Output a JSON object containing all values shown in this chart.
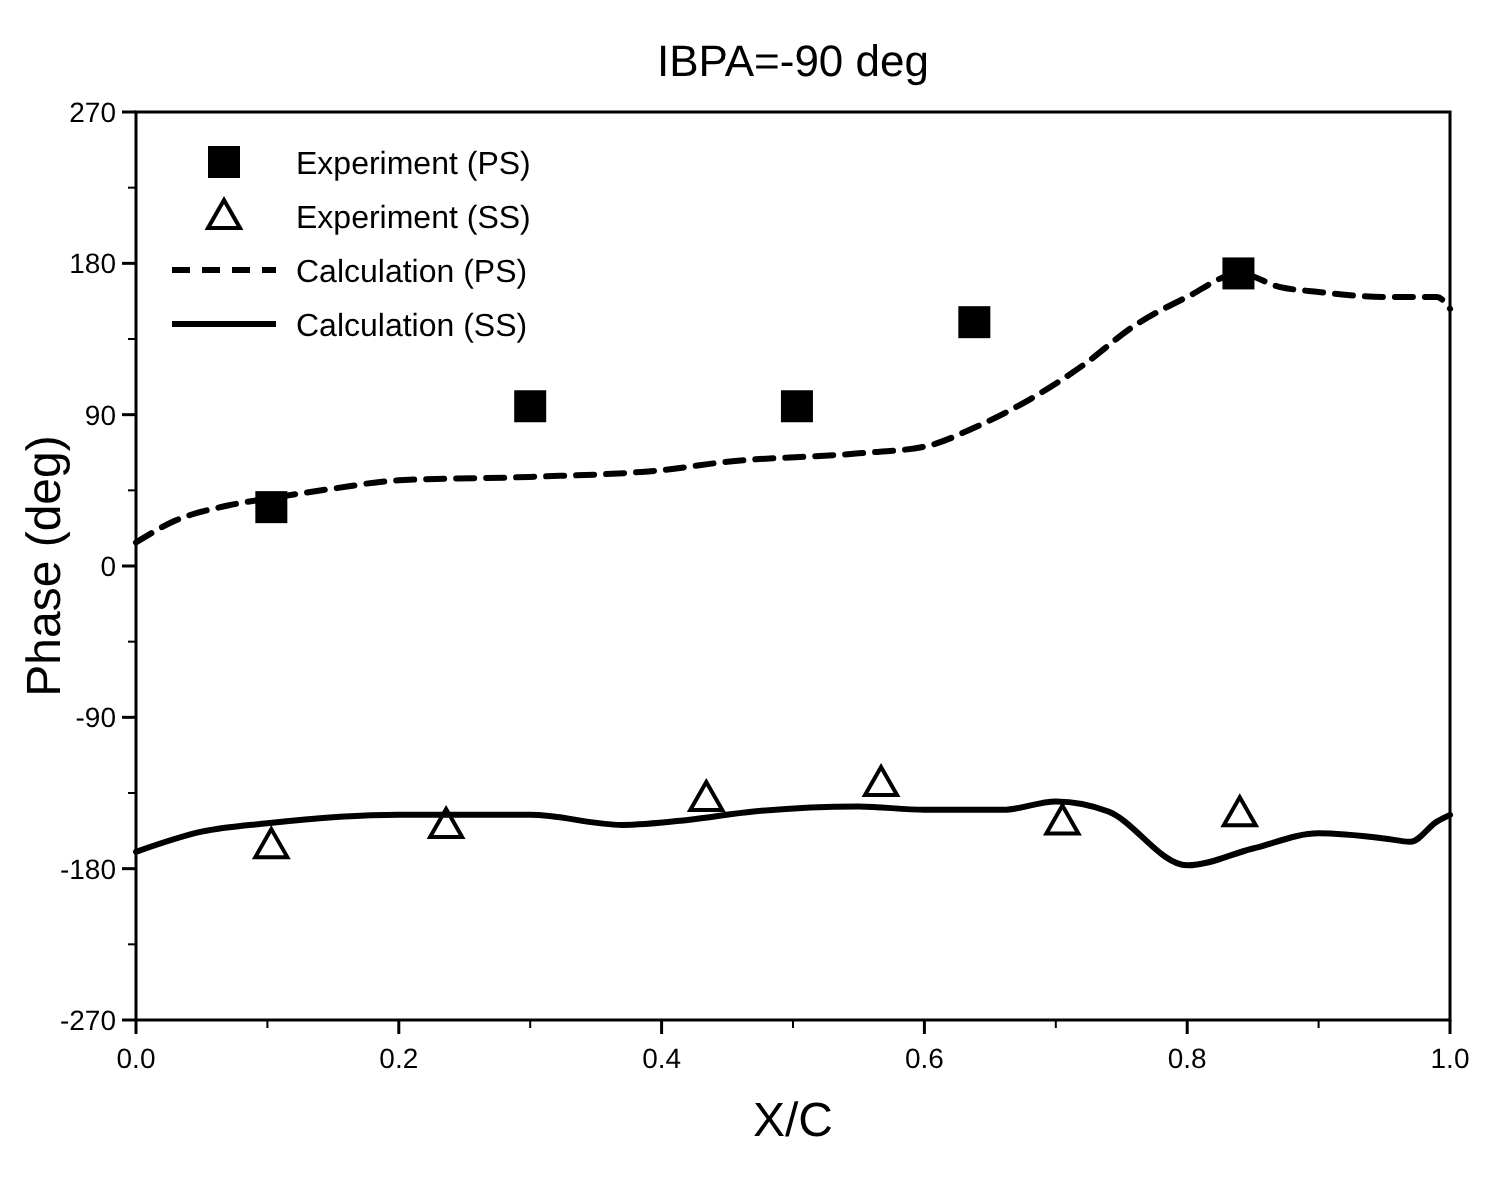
{
  "chart_data": {
    "type": "line",
    "title": "IBPA=-90 deg",
    "xlabel": "X/C",
    "ylabel": "Phase (deg)",
    "xlim": [
      0,
      1
    ],
    "xticks": [
      {
        "value": 0,
        "label": "0.0"
      },
      0.2,
      0.4,
      0.6,
      0.8,
      {
        "value": 1,
        "label": "1.0"
      }
    ],
    "ylim": [
      -270,
      270
    ],
    "yticks": [
      -270,
      -180,
      -90,
      0,
      90,
      180,
      270
    ],
    "grid": false,
    "legend": "top left",
    "series": [
      {
        "name": "Experiment (PS)",
        "type": "scatter",
        "marker": "square",
        "color": "#000000",
        "x": [
          0.103,
          0.3,
          0.503,
          0.638,
          0.839
        ],
        "values": [
          35,
          95,
          95,
          145,
          174
        ]
      },
      {
        "name": "Experiment (SS)",
        "type": "scatter",
        "marker": "triangle",
        "color": "#000000",
        "x": [
          0.103,
          0.236,
          0.434,
          0.567,
          0.705,
          0.84
        ],
        "values": [
          -166,
          -154,
          -138,
          -129,
          -152,
          -147
        ]
      },
      {
        "name": "Calculation (PS)",
        "line_style": "dashed",
        "color": "#000000",
        "x": [
          0,
          0.03,
          0.07,
          0.1,
          0.15,
          0.2,
          0.3,
          0.4,
          0.45,
          0.55,
          0.6,
          0.64,
          0.68,
          0.72,
          0.76,
          0.8,
          0.84,
          0.87,
          0.9,
          0.95,
          0.99,
          1.0
        ],
        "values": [
          14,
          27,
          36,
          40,
          46,
          51,
          53,
          57,
          62,
          67,
          71,
          83,
          99,
          119,
          143,
          160,
          174,
          166,
          163,
          160,
          160,
          153
        ]
      },
      {
        "name": "Calculation (SS)",
        "line_style": "solid",
        "color": "#000000",
        "x": [
          0,
          0.05,
          0.1,
          0.2,
          0.3,
          0.37,
          0.42,
          0.47,
          0.55,
          0.6,
          0.66,
          0.7,
          0.74,
          0.8,
          0.85,
          0.9,
          0.95,
          0.97,
          0.99,
          1.0
        ],
        "values": [
          -170,
          -158,
          -153,
          -148,
          -148,
          -154,
          -151,
          -146,
          -143,
          -145,
          -145,
          -140,
          -146,
          -178,
          -168,
          -159,
          -162,
          -164,
          -152,
          -148
        ]
      }
    ]
  }
}
